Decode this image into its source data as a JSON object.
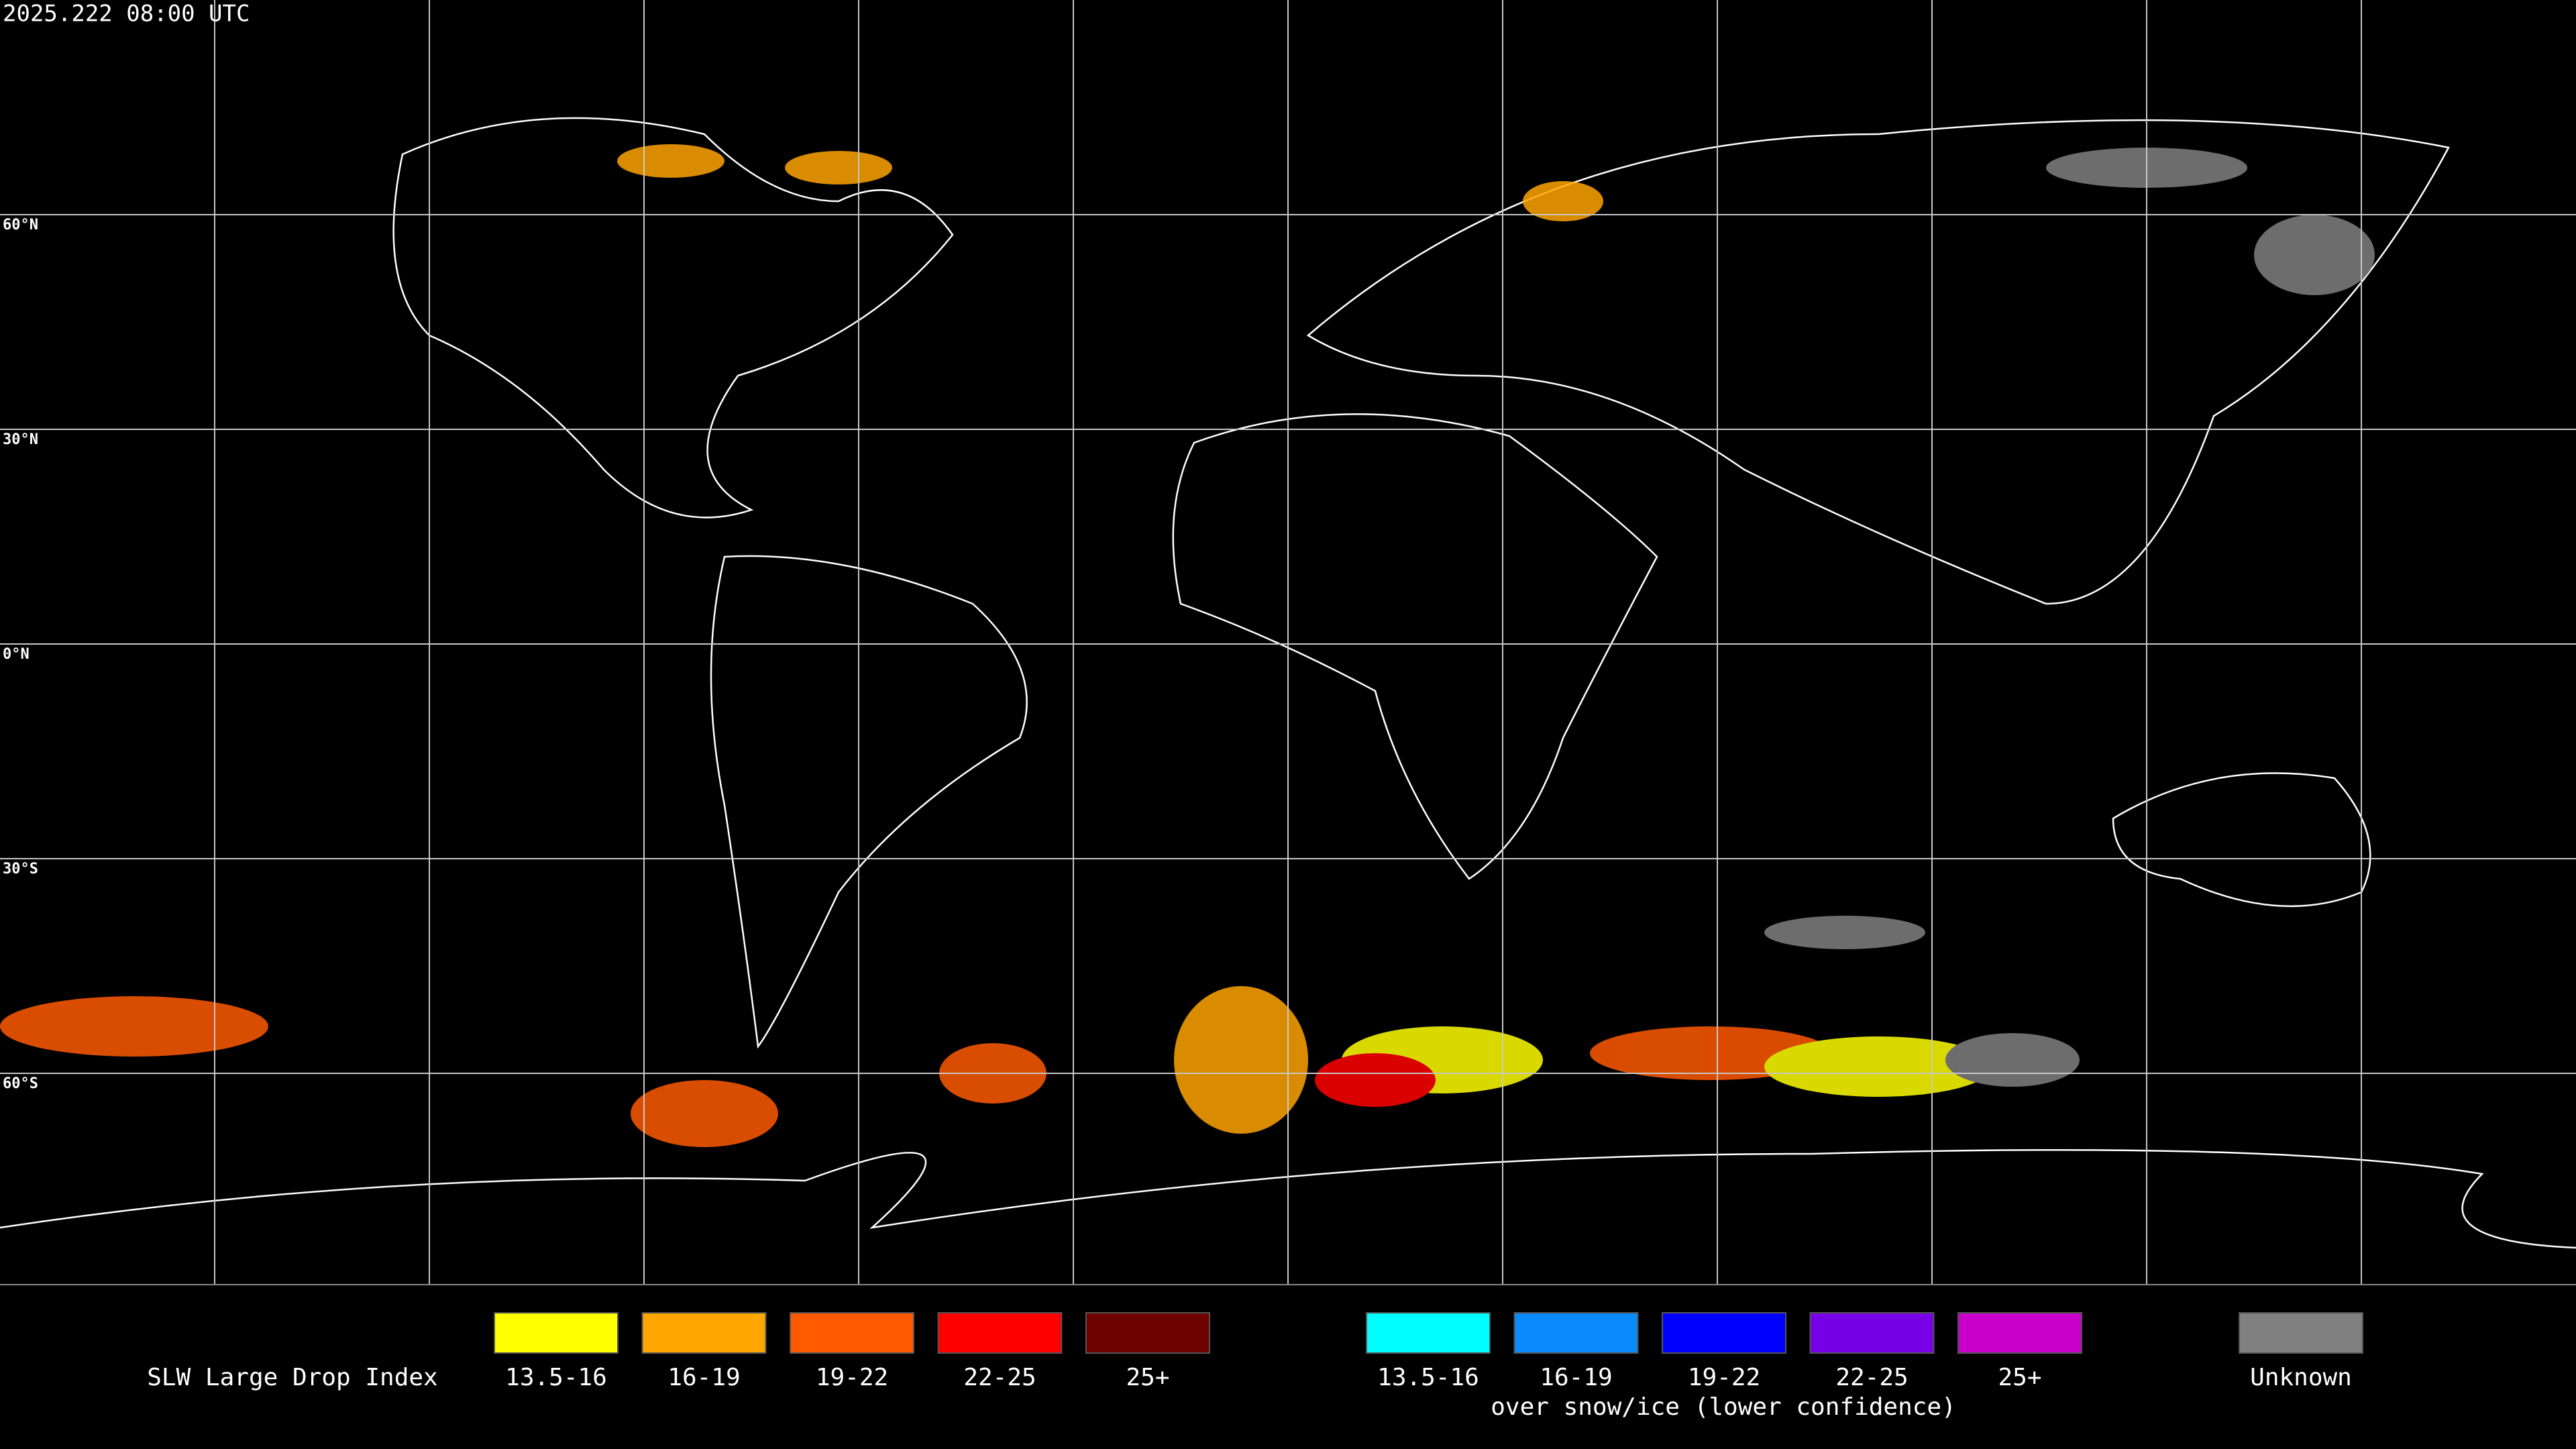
{
  "header": {
    "timestamp": "2025.222 08:00 UTC"
  },
  "grid": {
    "lat_labels": [
      "60°N",
      "30°N",
      "0°N",
      "30°S",
      "60°S"
    ]
  },
  "legend": {
    "title": "SLW Large Drop Index",
    "main": [
      {
        "label": "13.5-16",
        "color": "#ffff00"
      },
      {
        "label": "16-19",
        "color": "#ffa500"
      },
      {
        "label": "19-22",
        "color": "#ff5a00"
      },
      {
        "label": "22-25",
        "color": "#ff0000"
      },
      {
        "label": "25+",
        "color": "#6e0000"
      }
    ],
    "snow_ice": [
      {
        "label": "13.5-16",
        "color": "#00ffff"
      },
      {
        "label": "16-19",
        "color": "#0a8cff"
      },
      {
        "label": "19-22",
        "color": "#0000ff"
      },
      {
        "label": "22-25",
        "color": "#7800e6"
      },
      {
        "label": "25+",
        "color": "#c800c8"
      }
    ],
    "snow_ice_caption": "over snow/ice (lower confidence)",
    "unknown": {
      "label": "Unknown",
      "color": "#808080"
    }
  }
}
